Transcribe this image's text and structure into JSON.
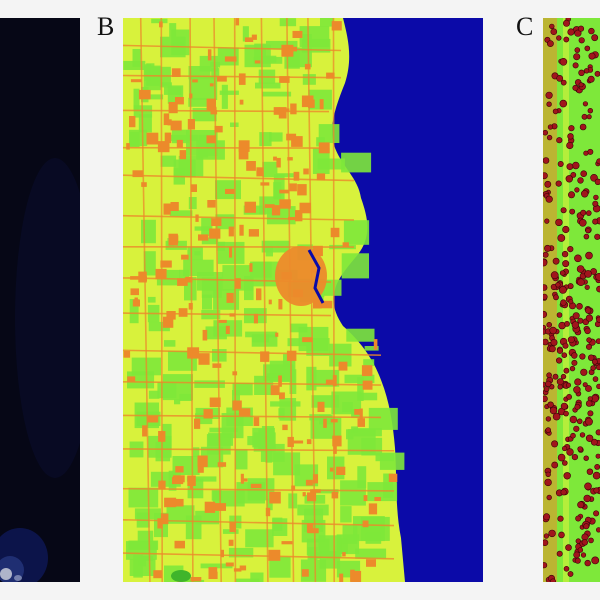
{
  "panels": {
    "b": {
      "label": "B"
    },
    "c": {
      "label": "C"
    }
  },
  "legend_colors": {
    "water": "#0b0aa8",
    "urban": "#ec8a2b",
    "developed": "#d8f23c",
    "vegetation": "#7ee83a",
    "forest": "#3fb52b",
    "points": "#a1151c",
    "night": "#05060f"
  }
}
